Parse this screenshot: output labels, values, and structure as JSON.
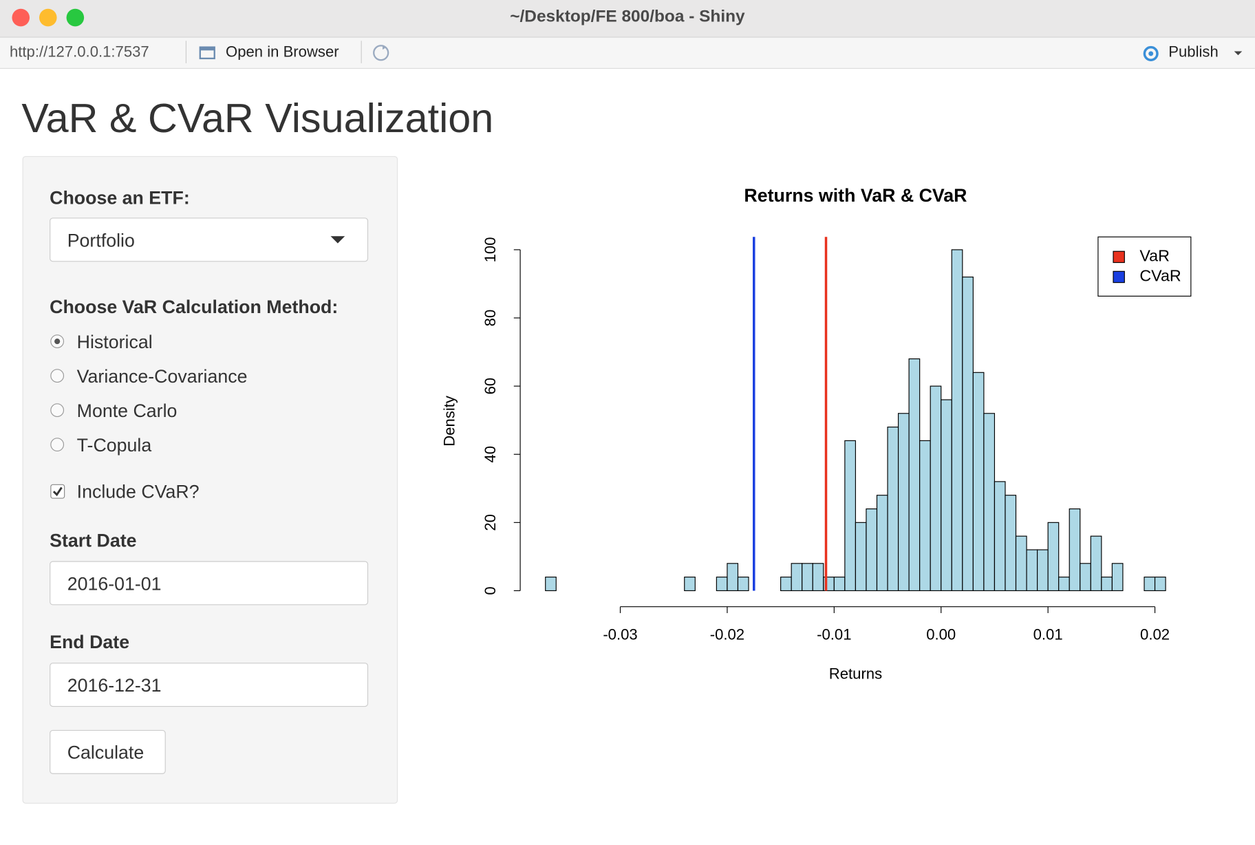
{
  "window": {
    "title": "~/Desktop/FE 800/boa - Shiny"
  },
  "toolbar": {
    "url": "http://127.0.0.1:7537",
    "open_button": "Open in Browser",
    "publish_button": "Publish"
  },
  "app": {
    "title": "VaR & CVaR Visualization",
    "sidebar": {
      "etf_label": "Choose an ETF:",
      "etf_value": "Portfolio",
      "method_label": "Choose VaR Calculation Method:",
      "methods": [
        "Historical",
        "Variance-Covariance",
        "Monte Carlo",
        "T-Copula"
      ],
      "selected_method": 0,
      "cvar_label": "Include CVaR?",
      "cvar_checked": true,
      "start_label": "Start Date",
      "start_value": "2016-01-01",
      "end_label": "End Date",
      "end_value": "2016-12-31",
      "button": "Calculate"
    }
  },
  "chart_data": {
    "type": "histogram",
    "title": "Returns with VaR & CVaR",
    "x_label": "Returns",
    "y_label": "Density",
    "color": "#add8e6",
    "bins": [
      -0.037,
      -0.036,
      -0.035,
      -0.034,
      -0.033,
      -0.032,
      -0.031,
      -0.03,
      -0.029,
      -0.028,
      -0.027,
      -0.026,
      -0.025,
      -0.024,
      -0.023,
      -0.022,
      -0.021,
      -0.02,
      -0.019,
      -0.018,
      -0.017,
      -0.016,
      -0.015,
      -0.014,
      -0.013,
      -0.012,
      -0.011,
      -0.01,
      -0.009,
      -0.008,
      -0.007,
      -0.006,
      -0.005,
      -0.004,
      -0.003,
      -0.002,
      -0.001,
      0.0,
      0.001,
      0.002,
      0.003,
      0.004,
      0.005,
      0.006,
      0.007,
      0.008,
      0.009,
      0.01,
      0.011,
      0.012,
      0.013,
      0.014,
      0.015,
      0.016,
      0.017,
      0.018,
      0.019,
      0.02,
      0.021
    ],
    "values": [
      4,
      0,
      0,
      0,
      0,
      0,
      0,
      0,
      0,
      0,
      0,
      0,
      0,
      4,
      0,
      0,
      4,
      8,
      4,
      0,
      0,
      0,
      4,
      8,
      8,
      8,
      4,
      4,
      44,
      20,
      24,
      28,
      48,
      52,
      68,
      44,
      60,
      56,
      100,
      92,
      64,
      52,
      32,
      28,
      16,
      12,
      12,
      20,
      4,
      24,
      8,
      16,
      4,
      8,
      0,
      0,
      4,
      4
    ],
    "vlines": [
      {
        "name": "VaR",
        "color": "#e8321e",
        "value": -0.01076
      },
      {
        "name": "CVaR",
        "color": "#1a3fe0",
        "value": -0.0175
      }
    ],
    "legend": "top-right",
    "xlim": [
      -0.037,
      0.021
    ],
    "ylim": [
      0,
      100
    ],
    "xticks": [
      -0.03,
      -0.02,
      -0.01,
      {
        "value": 0,
        "label": "0.00"
      },
      0.01,
      0.02
    ],
    "yticks": [
      0,
      20,
      40,
      60,
      80,
      100
    ]
  }
}
